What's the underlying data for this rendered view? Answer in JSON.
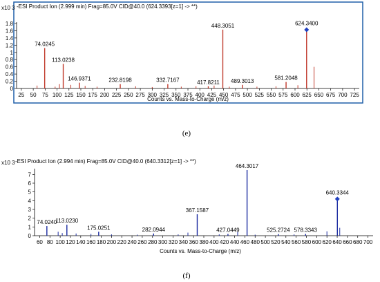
{
  "chart_data": [
    {
      "type": "bar",
      "panel": "e",
      "header": "-ESI Product Ion (2.999 min) Frag=85.0V CID@40.0 (624.3393[z=1] -> **)",
      "multiplier": "x10 3",
      "xlabel": "Counts vs. Mass-to-Charge (m/z)",
      "xlim": [
        15,
        735
      ],
      "ylim": [
        0,
        1.8
      ],
      "xticks": [
        25,
        50,
        75,
        100,
        125,
        150,
        175,
        200,
        225,
        250,
        275,
        300,
        325,
        350,
        375,
        400,
        425,
        450,
        475,
        500,
        525,
        550,
        575,
        600,
        625,
        650,
        675,
        700,
        725
      ],
      "yticks": [
        0,
        0.2,
        0.4,
        0.6,
        0.8,
        1,
        1.2,
        1.4,
        1.6,
        1.8
      ],
      "peak_color": "#c0392b",
      "marker_color": "#1f3fbf",
      "frame_color": "#1f5fa8",
      "peaks": [
        {
          "mz": 74.0245,
          "intensity": 1.12,
          "label": "74.0245"
        },
        {
          "mz": 113.0238,
          "intensity": 0.68,
          "label": "113.0238"
        },
        {
          "mz": 146.9371,
          "intensity": 0.16,
          "label": "146.9371"
        },
        {
          "mz": 232.8198,
          "intensity": 0.12,
          "label": "232.8198"
        },
        {
          "mz": 332.7167,
          "intensity": 0.12,
          "label": "332.7167"
        },
        {
          "mz": 417.8211,
          "intensity": 0.06,
          "label": "417.8211"
        },
        {
          "mz": 448.3051,
          "intensity": 1.63,
          "label": "448.3051"
        },
        {
          "mz": 489.3013,
          "intensity": 0.1,
          "label": "489.3013"
        },
        {
          "mz": 581.2048,
          "intensity": 0.18,
          "label": "581.2048"
        },
        {
          "mz": 624.34,
          "intensity": 1.58,
          "label": "624.3400",
          "marker": true
        }
      ],
      "minor_peaks": [
        {
          "mz": 58,
          "intensity": 0.08
        },
        {
          "mz": 96,
          "intensity": 0.05
        },
        {
          "mz": 105,
          "intensity": 0.12
        },
        {
          "mz": 129,
          "intensity": 0.1
        },
        {
          "mz": 159,
          "intensity": 0.07
        },
        {
          "mz": 184,
          "intensity": 0.05
        },
        {
          "mz": 265,
          "intensity": 0.06
        },
        {
          "mz": 300,
          "intensity": 0.04
        },
        {
          "mz": 361,
          "intensity": 0.05
        },
        {
          "mz": 392,
          "intensity": 0.06
        },
        {
          "mz": 430,
          "intensity": 0.08
        },
        {
          "mz": 462,
          "intensity": 0.05
        },
        {
          "mz": 520,
          "intensity": 0.05
        },
        {
          "mz": 560,
          "intensity": 0.06
        },
        {
          "mz": 606,
          "intensity": 0.09
        },
        {
          "mz": 640,
          "intensity": 0.6
        }
      ]
    },
    {
      "type": "bar",
      "panel": "f",
      "header": "-ESI Product Ion (2.994 min) Frag=85.0V CID@40.0 (640.3312[z=1] -> **)",
      "multiplier": "x10 3",
      "xlabel": "Counts vs. Mass-to-Charge (m/z)",
      "xlim": [
        50,
        710
      ],
      "ylim": [
        0,
        7.5
      ],
      "xticks": [
        60,
        80,
        100,
        120,
        140,
        160,
        180,
        200,
        220,
        240,
        260,
        280,
        300,
        320,
        340,
        360,
        380,
        400,
        420,
        440,
        460,
        480,
        500,
        520,
        540,
        560,
        580,
        600,
        620,
        640,
        660,
        680,
        700
      ],
      "yticks": [
        0,
        1,
        2,
        3,
        4,
        5,
        6,
        7
      ],
      "peak_color": "#1a2aa0",
      "marker_color": "#1f3fbf",
      "frame_color": "#1f5fa8",
      "peaks": [
        {
          "mz": 74.024,
          "intensity": 1.1,
          "label": "74.0240"
        },
        {
          "mz": 113.023,
          "intensity": 1.25,
          "label": "113.0230"
        },
        {
          "mz": 175.0251,
          "intensity": 0.45,
          "label": "175.0251"
        },
        {
          "mz": 282.0944,
          "intensity": 0.25,
          "label": "282.0944"
        },
        {
          "mz": 367.1587,
          "intensity": 2.45,
          "label": "367.1587"
        },
        {
          "mz": 427.0449,
          "intensity": 0.2,
          "label": "427.0449"
        },
        {
          "mz": 464.3017,
          "intensity": 7.5,
          "label": "464.3017"
        },
        {
          "mz": 525.2724,
          "intensity": 0.18,
          "label": "525.2724"
        },
        {
          "mz": 578.3343,
          "intensity": 0.2,
          "label": "578.3343"
        },
        {
          "mz": 640.3344,
          "intensity": 4.0,
          "label": "640.3344",
          "marker": true
        }
      ],
      "minor_peaks": [
        {
          "mz": 96,
          "intensity": 0.45
        },
        {
          "mz": 104,
          "intensity": 0.3
        },
        {
          "mz": 131,
          "intensity": 0.25
        },
        {
          "mz": 160,
          "intensity": 0.2
        },
        {
          "mz": 200,
          "intensity": 0.15
        },
        {
          "mz": 250,
          "intensity": 0.12
        },
        {
          "mz": 330,
          "intensity": 0.15
        },
        {
          "mz": 349,
          "intensity": 0.35
        },
        {
          "mz": 410,
          "intensity": 0.15
        },
        {
          "mz": 446,
          "intensity": 0.4
        },
        {
          "mz": 480,
          "intensity": 0.12
        },
        {
          "mz": 556,
          "intensity": 0.15
        },
        {
          "mz": 620,
          "intensity": 0.5
        },
        {
          "mz": 645,
          "intensity": 0.9
        }
      ]
    }
  ],
  "captions": [
    "(e)",
    "(f)"
  ]
}
